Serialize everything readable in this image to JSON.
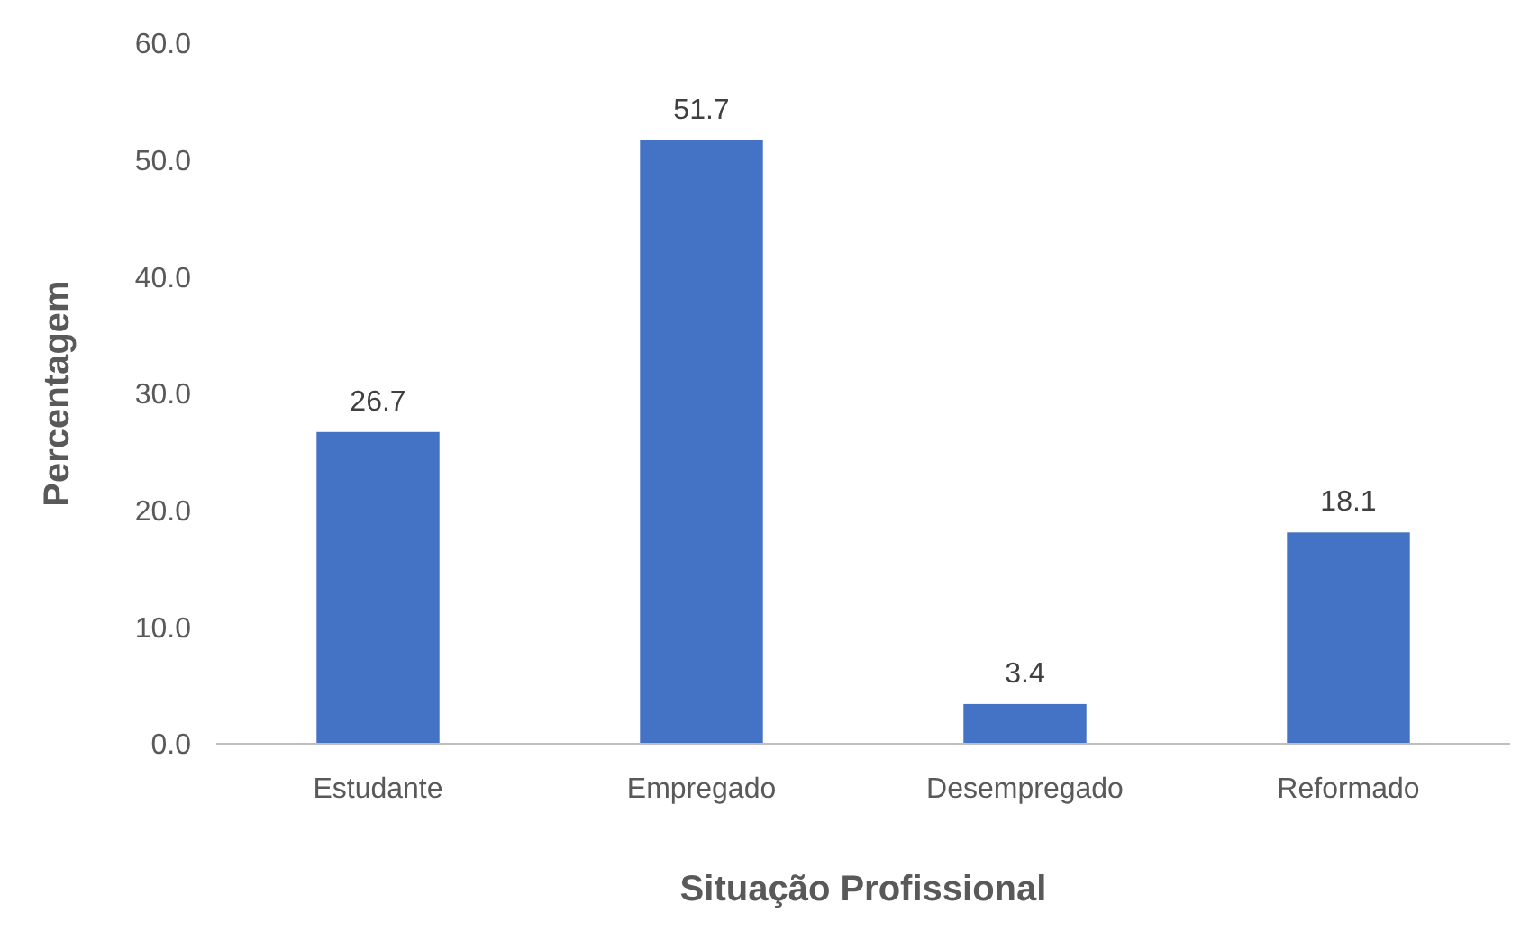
{
  "chart_data": {
    "type": "bar",
    "xlabel": "Situação Profissional",
    "ylabel": "Percentagem",
    "categories": [
      "Estudante",
      "Empregado",
      "Desempregado",
      "Reformado"
    ],
    "values": [
      26.7,
      51.7,
      3.4,
      18.1
    ],
    "color": "#4472c4",
    "ylim": [
      0,
      60
    ],
    "yticks": [
      {
        "value": 0,
        "label": "0.0"
      },
      {
        "value": 10,
        "label": "10.0"
      },
      {
        "value": 20,
        "label": "20.0"
      },
      {
        "value": 30,
        "label": "30.0"
      },
      {
        "value": 40,
        "label": "40.0"
      },
      {
        "value": 50,
        "label": "50.0"
      },
      {
        "value": 60,
        "label": "60.0"
      }
    ],
    "data_labels": true,
    "grid": false
  }
}
